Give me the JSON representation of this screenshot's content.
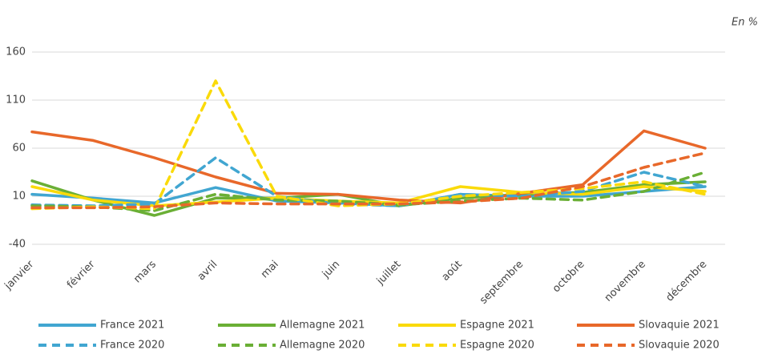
{
  "chart_data": {
    "type": "line",
    "unit_note": "En %",
    "categories": [
      "janvier",
      "février",
      "mars",
      "avril",
      "mai",
      "juin",
      "juillet",
      "août",
      "septembre",
      "octobre",
      "novembre",
      "décembre"
    ],
    "ylim": [
      -40,
      160
    ],
    "yticks": [
      -40,
      10,
      60,
      110,
      160
    ],
    "grid": true,
    "legend": "bottom",
    "series": [
      {
        "name": "France 2021",
        "color": "#41a6d1",
        "dashed": false,
        "values": [
          12,
          8,
          3,
          19,
          5,
          3,
          0,
          12,
          10,
          10,
          15,
          20
        ]
      },
      {
        "name": "Allemagne 2021",
        "color": "#6aaf35",
        "dashed": false,
        "values": [
          26,
          6,
          -10,
          8,
          8,
          12,
          0,
          8,
          12,
          14,
          22,
          25
        ]
      },
      {
        "name": "Espagne 2021",
        "color": "#fada0a",
        "dashed": false,
        "values": [
          20,
          6,
          0,
          4,
          8,
          5,
          3,
          20,
          14,
          12,
          20,
          15
        ]
      },
      {
        "name": "Slovaquie 2021",
        "color": "#e8682a",
        "dashed": false,
        "values": [
          77,
          68,
          50,
          30,
          13,
          12,
          6,
          3,
          13,
          22,
          78,
          60
        ]
      },
      {
        "name": "France 2020",
        "color": "#41a6d1",
        "dashed": true,
        "values": [
          1,
          0,
          2,
          50,
          10,
          2,
          0,
          12,
          10,
          15,
          35,
          20
        ]
      },
      {
        "name": "Allemagne 2020",
        "color": "#6aaf35",
        "dashed": true,
        "values": [
          0,
          -1,
          -5,
          12,
          6,
          5,
          1,
          5,
          8,
          6,
          15,
          35
        ]
      },
      {
        "name": "Espagne 2020",
        "color": "#fada0a",
        "dashed": true,
        "values": [
          -3,
          -1,
          -3,
          130,
          10,
          0,
          2,
          10,
          14,
          18,
          25,
          12
        ]
      },
      {
        "name": "Slovaquie 2020",
        "color": "#e8682a",
        "dashed": true,
        "values": [
          -2,
          -2,
          -1,
          3,
          2,
          2,
          2,
          4,
          8,
          20,
          40,
          55
        ]
      }
    ]
  }
}
